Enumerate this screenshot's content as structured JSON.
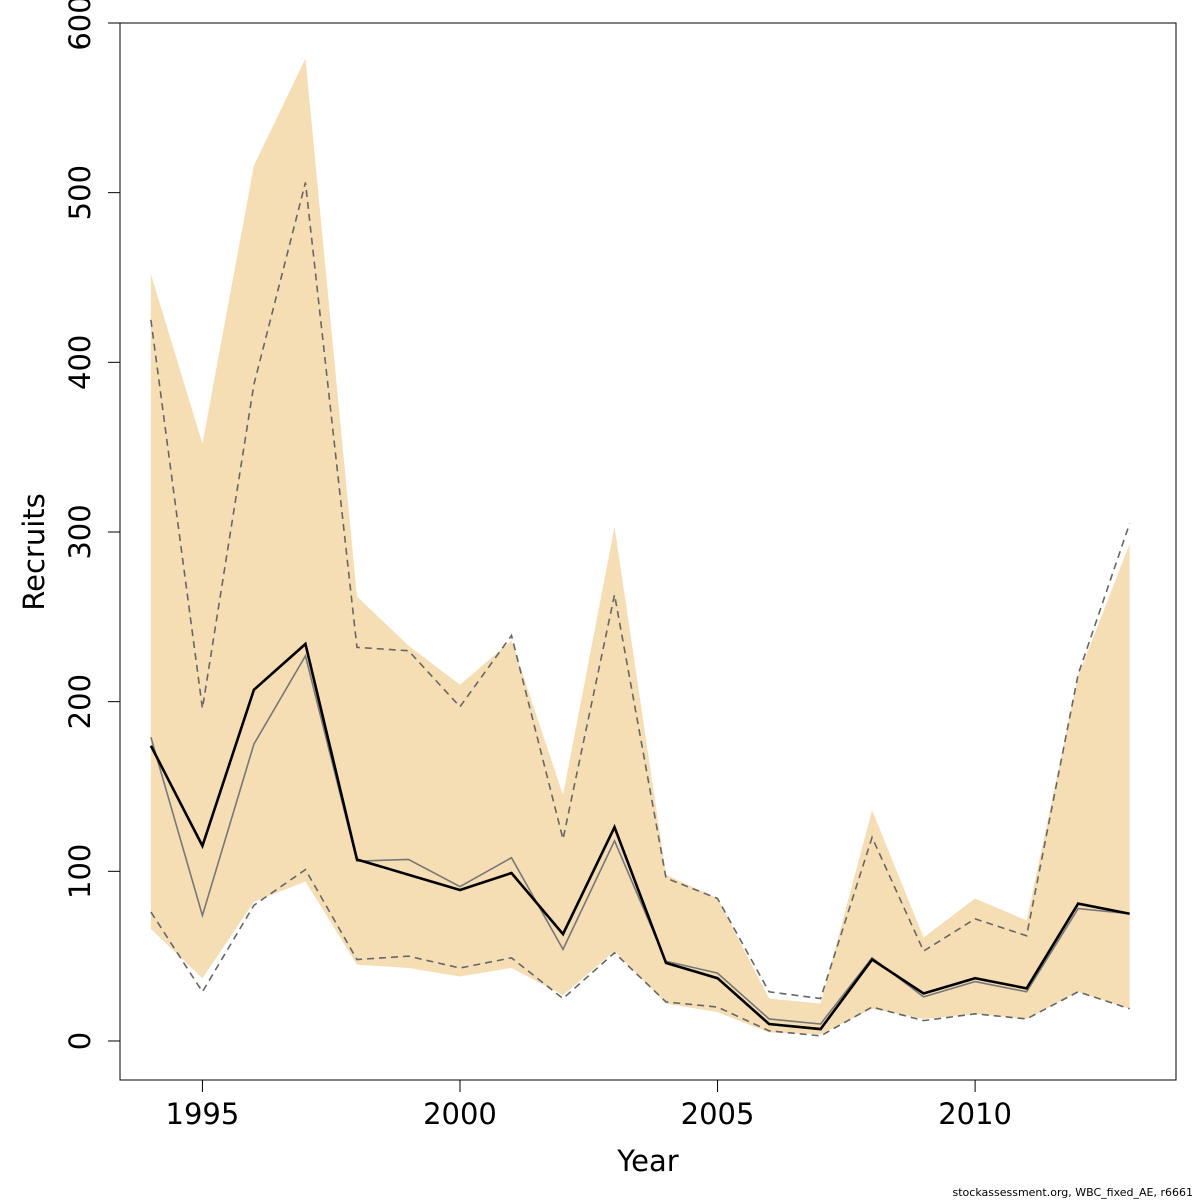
{
  "chart_data": {
    "type": "line",
    "xlabel": "Year",
    "ylabel": "Recruits",
    "xlim": [
      1993.4,
      2013.9
    ],
    "ylim": [
      -23,
      600
    ],
    "x_ticks": [
      1995,
      2000,
      2005,
      2010
    ],
    "y_ticks": [
      0,
      100,
      200,
      300,
      400,
      500,
      600
    ],
    "grid": false,
    "legend": "none",
    "x": [
      1994,
      1995,
      1996,
      1997,
      1998,
      1999,
      2000,
      2001,
      2002,
      2003,
      2004,
      2005,
      2006,
      2007,
      2008,
      2009,
      2010,
      2011,
      2012,
      2013
    ],
    "band": {
      "color": "#f5deb3",
      "upper": [
        452,
        352,
        516,
        579,
        262,
        233,
        210,
        236,
        145,
        303,
        98,
        84,
        25,
        22,
        136,
        61,
        84,
        71,
        215,
        293
      ],
      "lower": [
        66,
        37,
        82,
        94,
        45,
        43,
        38,
        43,
        27,
        53,
        22,
        17,
        5,
        4,
        19,
        13,
        16,
        13,
        29,
        19
      ]
    },
    "series": [
      {
        "style": "solid-black-thick",
        "color": "#000000",
        "values": [
          174,
          115,
          207,
          234,
          107,
          98,
          89,
          99,
          63,
          126,
          46,
          37,
          10,
          7,
          48,
          28,
          37,
          31,
          81,
          75
        ]
      },
      {
        "style": "solid-gray",
        "color": "#777777",
        "values": [
          179,
          74,
          175,
          227,
          106,
          107,
          91,
          108,
          54,
          118,
          47,
          40,
          13,
          10,
          49,
          26,
          35,
          29,
          78,
          75
        ]
      },
      {
        "style": "dashed-gray-upper",
        "color": "#666666",
        "values": [
          425,
          196,
          387,
          506,
          232,
          230,
          197,
          239,
          119,
          263,
          96,
          84,
          29,
          25,
          120,
          53,
          72,
          62,
          216,
          305
        ]
      },
      {
        "style": "dashed-gray-lower",
        "color": "#666666",
        "values": [
          76,
          29,
          80,
          101,
          48,
          50,
          43,
          49,
          25,
          52,
          23,
          20,
          6,
          3,
          20,
          12,
          16,
          13,
          29,
          19
        ]
      }
    ]
  },
  "footer": "stockassessment.org, WBC_fixed_AE, r6661"
}
